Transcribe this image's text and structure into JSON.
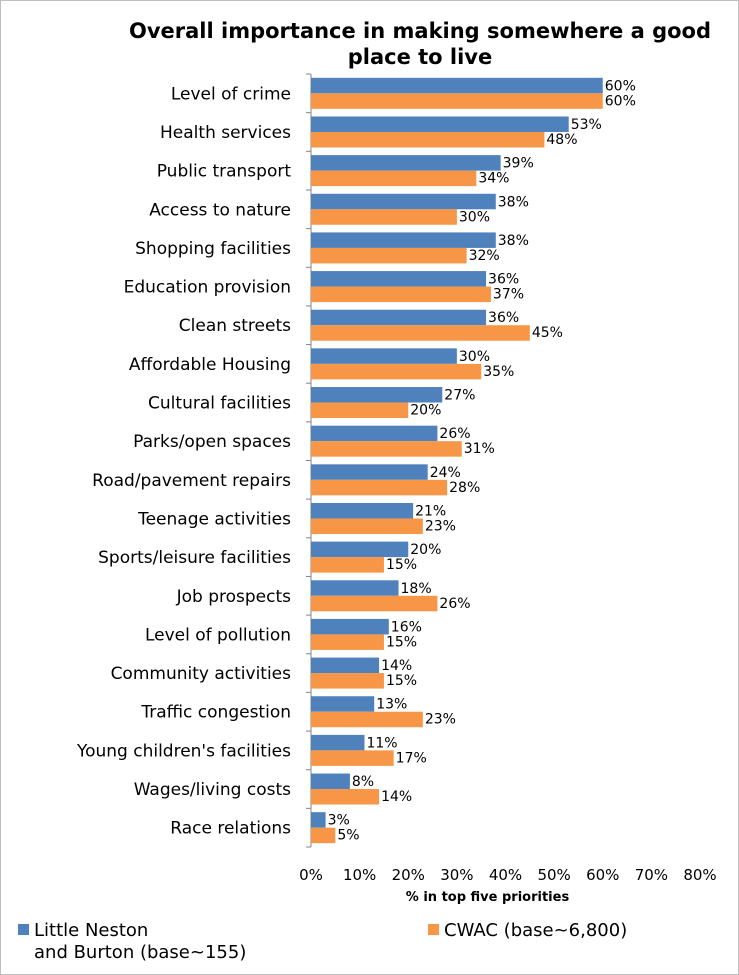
{
  "chart_data": {
    "type": "bar",
    "orientation": "horizontal",
    "title": "Overall importance in making somewhere a good place to live",
    "xlabel": "% in top five priorities",
    "xlim": [
      0,
      80
    ],
    "xticks": [
      "0%",
      "10%",
      "20%",
      "30%",
      "40%",
      "50%",
      "60%",
      "70%",
      "80%"
    ],
    "categories": [
      "Level of crime",
      "Health services",
      "Public transport",
      "Access to nature",
      "Shopping facilities",
      "Education provision",
      "Clean streets",
      "Affordable Housing",
      "Cultural facilities",
      "Parks/open spaces",
      "Road/pavement repairs",
      "Teenage activities",
      "Sports/leisure facilities",
      "Job prospects",
      "Level of pollution",
      "Community activities",
      "Traffic congestion",
      "Young children's facilities",
      "Wages/living costs",
      "Race relations"
    ],
    "series": [
      {
        "name": "Little Neston and Burton (base~155)",
        "color": "#4f81bd",
        "values": [
          60,
          53,
          39,
          38,
          38,
          36,
          36,
          30,
          27,
          26,
          24,
          21,
          20,
          18,
          16,
          14,
          13,
          11,
          8,
          3
        ]
      },
      {
        "name": "CWAC (base~6,800)",
        "color": "#f79646",
        "values": [
          60,
          48,
          34,
          30,
          32,
          37,
          45,
          35,
          20,
          31,
          28,
          23,
          15,
          26,
          15,
          15,
          23,
          17,
          14,
          5
        ]
      }
    ],
    "grid": false,
    "legend": "bottom"
  },
  "legend": {
    "series1_line1": "Little Neston",
    "series1_line2": "and Burton (base~155)",
    "series2": "CWAC (base~6,800)"
  }
}
